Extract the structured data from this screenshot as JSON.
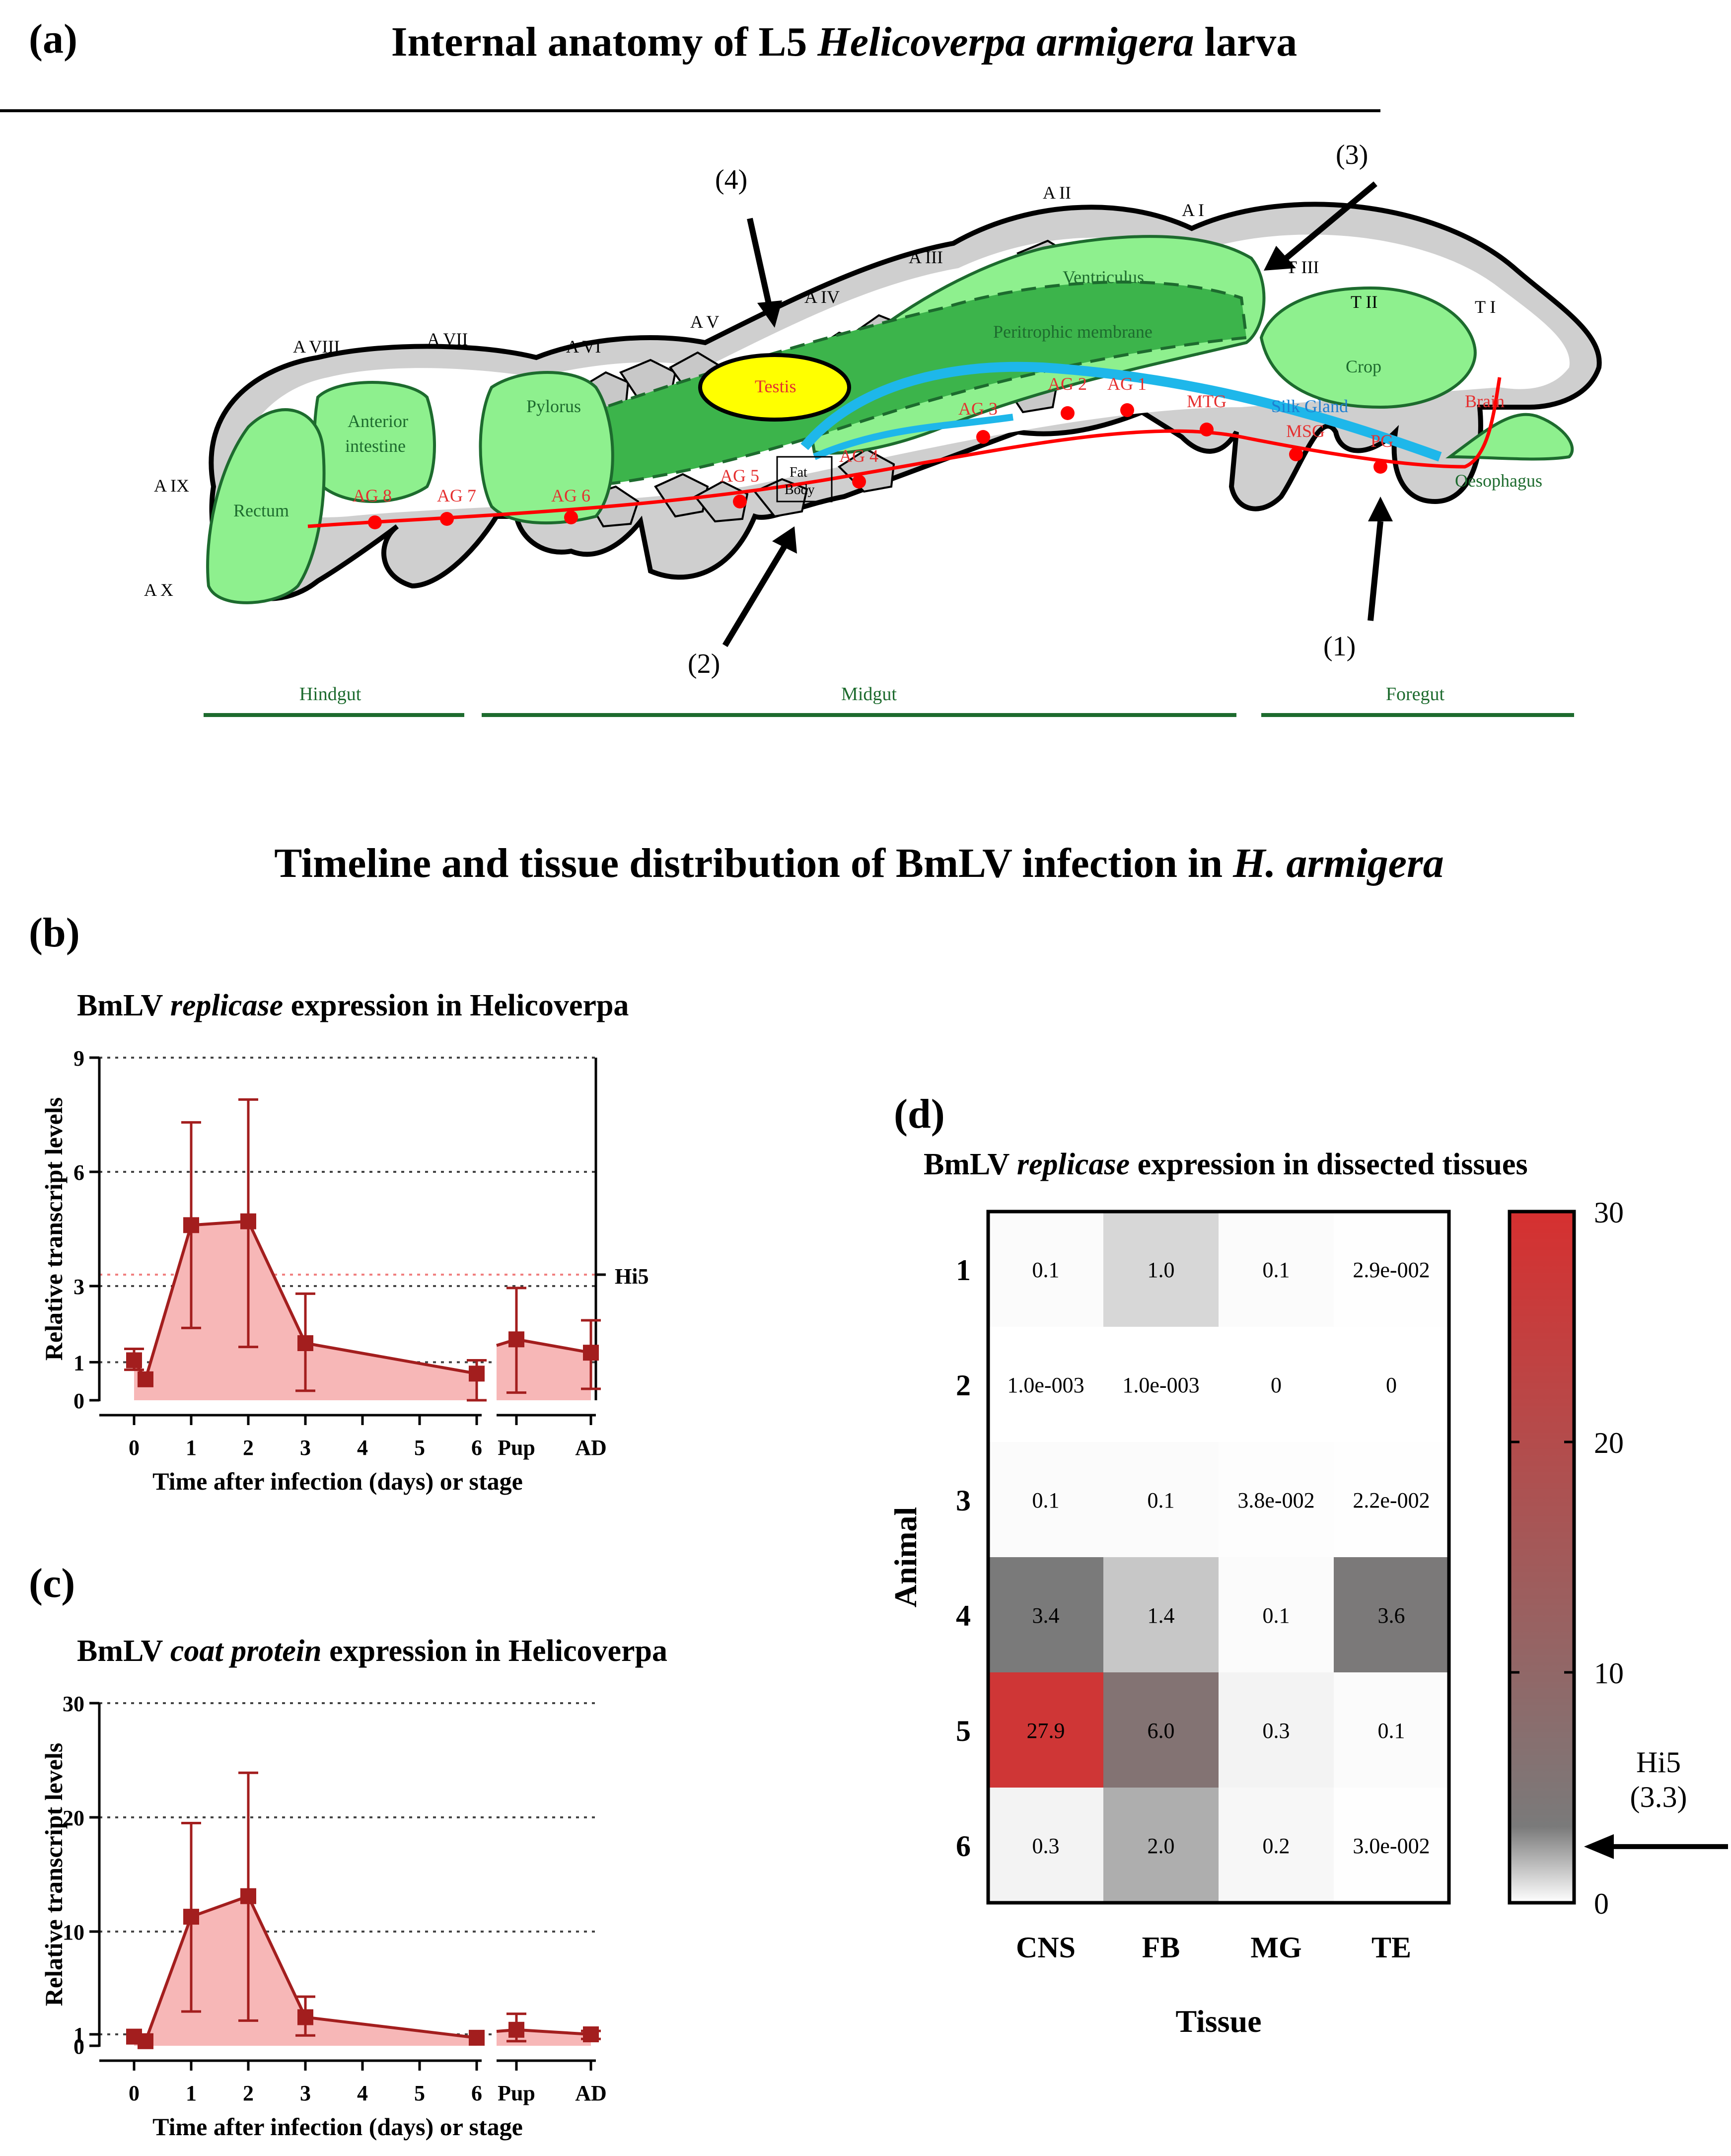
{
  "panel_a": {
    "letter": "(a)",
    "title_pre": "Internal anatomy of L5 ",
    "title_italic": "Helicoverpa armigera",
    "title_post": " larva",
    "segments": [
      "A I",
      "A II",
      "A III",
      "A IV",
      "A V",
      "A VI",
      "A VII",
      "A VIII",
      "A IX",
      "A X",
      "T I",
      "T II",
      "T III"
    ],
    "organs": {
      "ventriculus": "Ventriculus",
      "peritrophic": "Peritrophic membrane",
      "crop": "Crop",
      "testis": "Testis",
      "pylorus": "Pylorus",
      "anterior_intestine": "Anterior\nintestine",
      "rectum": "Rectum",
      "silk_gland": "Silk Gland",
      "msg": "MSG",
      "pg": "PG",
      "mtg": "MTG",
      "brain": "Brain",
      "oesophagus": "Oesophagus",
      "fat_body": "Fat\nBody"
    },
    "ganglia": [
      "AG 1",
      "AG 2",
      "AG 3",
      "AG 4",
      "AG 5",
      "AG 6",
      "AG 7",
      "AG 8"
    ],
    "arrows": [
      "(1)",
      "(2)",
      "(3)",
      "(4)"
    ],
    "gut_regions": [
      "Hindgut",
      "Midgut",
      "Foregut"
    ]
  },
  "section_title": {
    "pre": "Timeline and tissue distribution of BmLV infection in ",
    "italic": "H. armigera"
  },
  "panel_b": {
    "letter": "(b)",
    "title_pre": "BmLV ",
    "title_italic": "replicase",
    "title_mid": " expression in ",
    "title_post": "Helicoverpa",
    "ylabel": "Relative transcript levels",
    "xlabel": "Time after infection (days) or stage",
    "ref_label": "Hi5"
  },
  "panel_c": {
    "letter": "(c)",
    "title_pre": "BmLV ",
    "title_italic": "coat protein",
    "title_mid": " expression in ",
    "title_post": "Helicoverpa",
    "ylabel": "Relative transcript levels",
    "xlabel": "Time after infection (days) or stage"
  },
  "panel_d": {
    "letter": "(d)",
    "title_pre": "BmLV ",
    "title_italic": "replicase",
    "title_post": " expression in dissected tissues",
    "ylabel": "Animal",
    "xlabel": "Tissue",
    "ref_label": "Hi5",
    "ref_value": "(3.3)"
  },
  "chart_data": [
    {
      "type": "line",
      "id": "replicase-timeline",
      "title": "BmLV replicase expression in Helicoverpa",
      "xlabel": "Time after infection (days) or stage",
      "ylabel": "Relative transcript levels",
      "ylim": [
        0,
        9
      ],
      "yticks": [
        "0",
        "1",
        "3",
        "6",
        "9"
      ],
      "yticks_values": [
        0,
        1,
        3,
        6,
        9
      ],
      "xticks": [
        "0",
        "1",
        "2",
        "3",
        "4",
        "5",
        "6",
        "Pup",
        "AD"
      ],
      "reference_line": {
        "label": "Hi5",
        "value": 3.3
      },
      "series": [
        {
          "name": "days",
          "x": [
            0,
            0.2,
            1,
            2,
            3,
            6
          ],
          "values": [
            1.05,
            0.55,
            4.6,
            4.7,
            1.5,
            0.7
          ],
          "err_low": [
            0.8,
            0.55,
            1.9,
            1.4,
            0.25,
            0.0
          ],
          "err_high": [
            1.35,
            0.55,
            7.3,
            7.9,
            2.8,
            1.05
          ]
        },
        {
          "name": "stage",
          "x": [
            "Pup",
            "AD"
          ],
          "values": [
            1.6,
            1.25
          ],
          "err_low": [
            0.2,
            0.3
          ],
          "err_high": [
            2.95,
            2.1
          ]
        }
      ]
    },
    {
      "type": "line",
      "id": "coat-protein-timeline",
      "title": "BmLV coat protein expression in Helicoverpa",
      "xlabel": "Time after infection (days) or stage",
      "ylabel": "Relative transcript levels",
      "ylim": [
        0,
        30
      ],
      "yticks": [
        "0",
        "1",
        "10",
        "20",
        "30"
      ],
      "yticks_values": [
        0,
        1,
        10,
        20,
        30
      ],
      "xticks": [
        "0",
        "1",
        "2",
        "3",
        "4",
        "5",
        "6",
        "Pup",
        "AD"
      ],
      "series": [
        {
          "name": "days",
          "x": [
            0,
            0.2,
            1,
            2,
            3,
            6
          ],
          "values": [
            0.8,
            0.4,
            11.3,
            13.1,
            2.5,
            0.7
          ],
          "err_low": [
            0.8,
            0.4,
            3.0,
            2.2,
            0.9,
            0.7
          ],
          "err_high": [
            0.8,
            0.4,
            19.5,
            23.9,
            4.3,
            0.7
          ]
        },
        {
          "name": "stage",
          "x": [
            "Pup",
            "AD"
          ],
          "values": [
            1.4,
            1.0
          ],
          "err_low": [
            0.4,
            0.6
          ],
          "err_high": [
            2.8,
            1.3
          ]
        }
      ]
    },
    {
      "type": "heatmap",
      "id": "tissue-heatmap",
      "title": "BmLV replicase expression in dissected tissues",
      "xlabel": "Tissue",
      "ylabel": "Animal",
      "columns": [
        "CNS",
        "FB",
        "MG",
        "TE"
      ],
      "rows": [
        "1",
        "2",
        "3",
        "4",
        "5",
        "6"
      ],
      "values": [
        [
          0.1,
          1.0,
          0.1,
          0.029
        ],
        [
          0.001,
          0.001,
          0,
          0
        ],
        [
          0.1,
          0.1,
          0.038,
          0.022
        ],
        [
          3.4,
          1.4,
          0.1,
          3.6
        ],
        [
          27.9,
          6.0,
          0.3,
          0.1
        ],
        [
          0.3,
          2.0,
          0.2,
          0.03
        ]
      ],
      "labels": [
        [
          "0.1",
          "1.0",
          "0.1",
          "2.9e-002"
        ],
        [
          "1.0e-003",
          "1.0e-003",
          "0",
          "0"
        ],
        [
          "0.1",
          "0.1",
          "3.8e-002",
          "2.2e-002"
        ],
        [
          "3.4",
          "1.4",
          "0.1",
          "3.6"
        ],
        [
          "27.9",
          "6.0",
          "0.3",
          "0.1"
        ],
        [
          "0.3",
          "2.0",
          "0.2",
          "3.0e-002"
        ]
      ],
      "colorbar": {
        "min": 0,
        "max": 30,
        "ticks": [
          "0",
          "10",
          "20",
          "30"
        ],
        "tick_values": [
          0,
          10,
          20,
          30
        ],
        "low": "#ffffff",
        "mid": "#7a7a7a",
        "high": "#d63030",
        "mid_value": 3.3
      }
    }
  ]
}
